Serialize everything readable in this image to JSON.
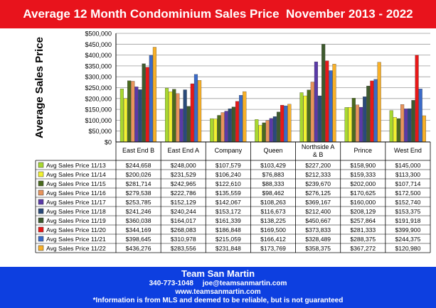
{
  "title": "Average 12 Month Condominium Sales Price  November 2013 - 2022",
  "footer": {
    "team": "Team San Martin",
    "phone": "340-773-1048",
    "email": "joe@teamsanmartin.com",
    "website": "www.teamsanmartin.com",
    "disclaimer": "*Information is from MLS and deemed to be reliable, but is not guaranteed"
  },
  "chart_data": {
    "type": "bar",
    "ylabel": "Average Sales Price",
    "ylim": [
      0,
      500000
    ],
    "ytick_step": 50000,
    "ytick_labels": [
      "$0",
      "$50,000",
      "$100,000",
      "$150,000",
      "$200,000",
      "$250,000",
      "$300,000",
      "$350,000",
      "$400,000",
      "$450,000",
      "$500,000"
    ],
    "grid": true,
    "legend": "data-table",
    "categories": [
      "East End B",
      "East End A",
      "Company",
      "Queen",
      "Northside A & B",
      "Prince",
      "West End"
    ],
    "category_lines": [
      [
        "East End B"
      ],
      [
        "East End A"
      ],
      [
        "Company"
      ],
      [
        "Queen"
      ],
      [
        "Northside A",
        "& B"
      ],
      [
        "Prince"
      ],
      [
        "West End"
      ]
    ],
    "series": [
      {
        "name": "Avg Sales Price 11/13",
        "color": "#a8d830",
        "values": [
          244658,
          248000,
          107579,
          103429,
          227200,
          158900,
          145000
        ],
        "labels": [
          "$244,658",
          "$248,000",
          "$107,579",
          "$103,429",
          "$227,200",
          "$158,900",
          "$145,000"
        ]
      },
      {
        "name": "Avg Sales Price 11/14",
        "color": "#f2f230",
        "values": [
          200026,
          231529,
          106240,
          76883,
          212333,
          159333,
          113300
        ],
        "labels": [
          "$200,026",
          "$231,529",
          "$106,240",
          "$76,883",
          "$212,333",
          "$159,333",
          "$113,300"
        ]
      },
      {
        "name": "Avg Sales Price 11/15",
        "color": "#4a6a1e",
        "values": [
          281714,
          242965,
          122610,
          88333,
          239670,
          202000,
          107714
        ],
        "labels": [
          "$281,714",
          "$242,965",
          "$122,610",
          "$88,333",
          "$239,670",
          "$202,000",
          "$107,714"
        ]
      },
      {
        "name": "Avg Sales Price 11/16",
        "color": "#e8945c",
        "values": [
          279538,
          222786,
          135559,
          98462,
          276125,
          170625,
          172500
        ],
        "labels": [
          "$279,538",
          "$222,786",
          "$135,559",
          "$98,462",
          "$276,125",
          "$170,625",
          "$172,500"
        ]
      },
      {
        "name": "Avg Sales Price 11/17",
        "color": "#5a3aa8",
        "values": [
          253785,
          152129,
          142067,
          108263,
          369167,
          160000,
          152740
        ],
        "labels": [
          "$253,785",
          "$152,129",
          "$142,067",
          "$108,263",
          "$369,167",
          "$160,000",
          "$152,740"
        ]
      },
      {
        "name": "Avg Sales Price 11/18",
        "color": "#2a4a7a",
        "values": [
          241246,
          240244,
          153172,
          116673,
          212400,
          208129,
          153375
        ],
        "labels": [
          "$241,246",
          "$240,244",
          "$153,172",
          "$116,673",
          "$212,400",
          "$208,129",
          "$153,375"
        ]
      },
      {
        "name": "Avg Sales Price 11/19",
        "color": "#3e5a2e",
        "values": [
          360038,
          164017,
          161339,
          138225,
          450667,
          257864,
          191918
        ],
        "labels": [
          "$360,038",
          "$164,017",
          "$161,339",
          "$138,225",
          "$450,667",
          "$257,864",
          "$191,918"
        ]
      },
      {
        "name": "Avg Sales Price 11/20",
        "color": "#e81818",
        "values": [
          344169,
          268083,
          186848,
          169500,
          373833,
          281333,
          399900
        ],
        "labels": [
          "$344,169",
          "$268,083",
          "$186,848",
          "$169,500",
          "$373,833",
          "$281,333",
          "$399,900"
        ]
      },
      {
        "name": "Avg Sales Price 11/21",
        "color": "#3a6ac8",
        "values": [
          398645,
          310978,
          215059,
          166412,
          328489,
          288375,
          244375
        ],
        "labels": [
          "$398,645",
          "$310,978",
          "$215,059",
          "$166,412",
          "$328,489",
          "$288,375",
          "$244,375"
        ]
      },
      {
        "name": "Avg Sales Price 11/22",
        "color": "#f8b028",
        "values": [
          436276,
          283556,
          231848,
          173769,
          358375,
          367272,
          120980
        ],
        "labels": [
          "$436,276",
          "$283,556",
          "$231,848",
          "$173,769",
          "$358,375",
          "$367,272",
          "$120,980"
        ]
      }
    ]
  }
}
